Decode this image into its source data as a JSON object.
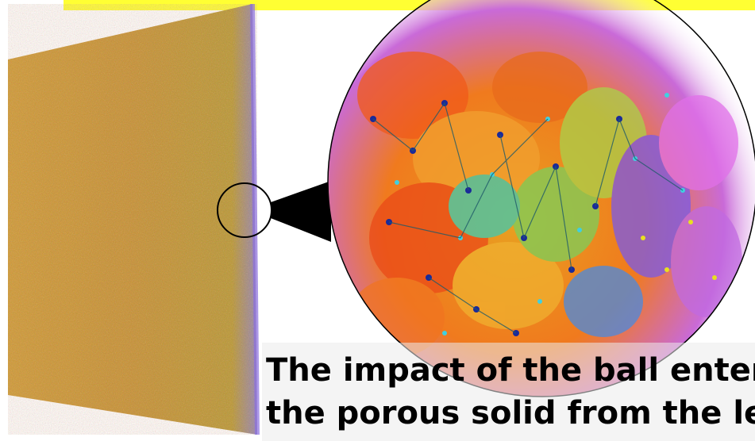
{
  "caption": {
    "line1": "The impact of the ball entering",
    "line2": "the porous solid from the left"
  },
  "colors": {
    "banner": "#ffff33",
    "slab_base": "#e0902e",
    "zoom_outline": "#000000",
    "caption_text": "#000000"
  }
}
